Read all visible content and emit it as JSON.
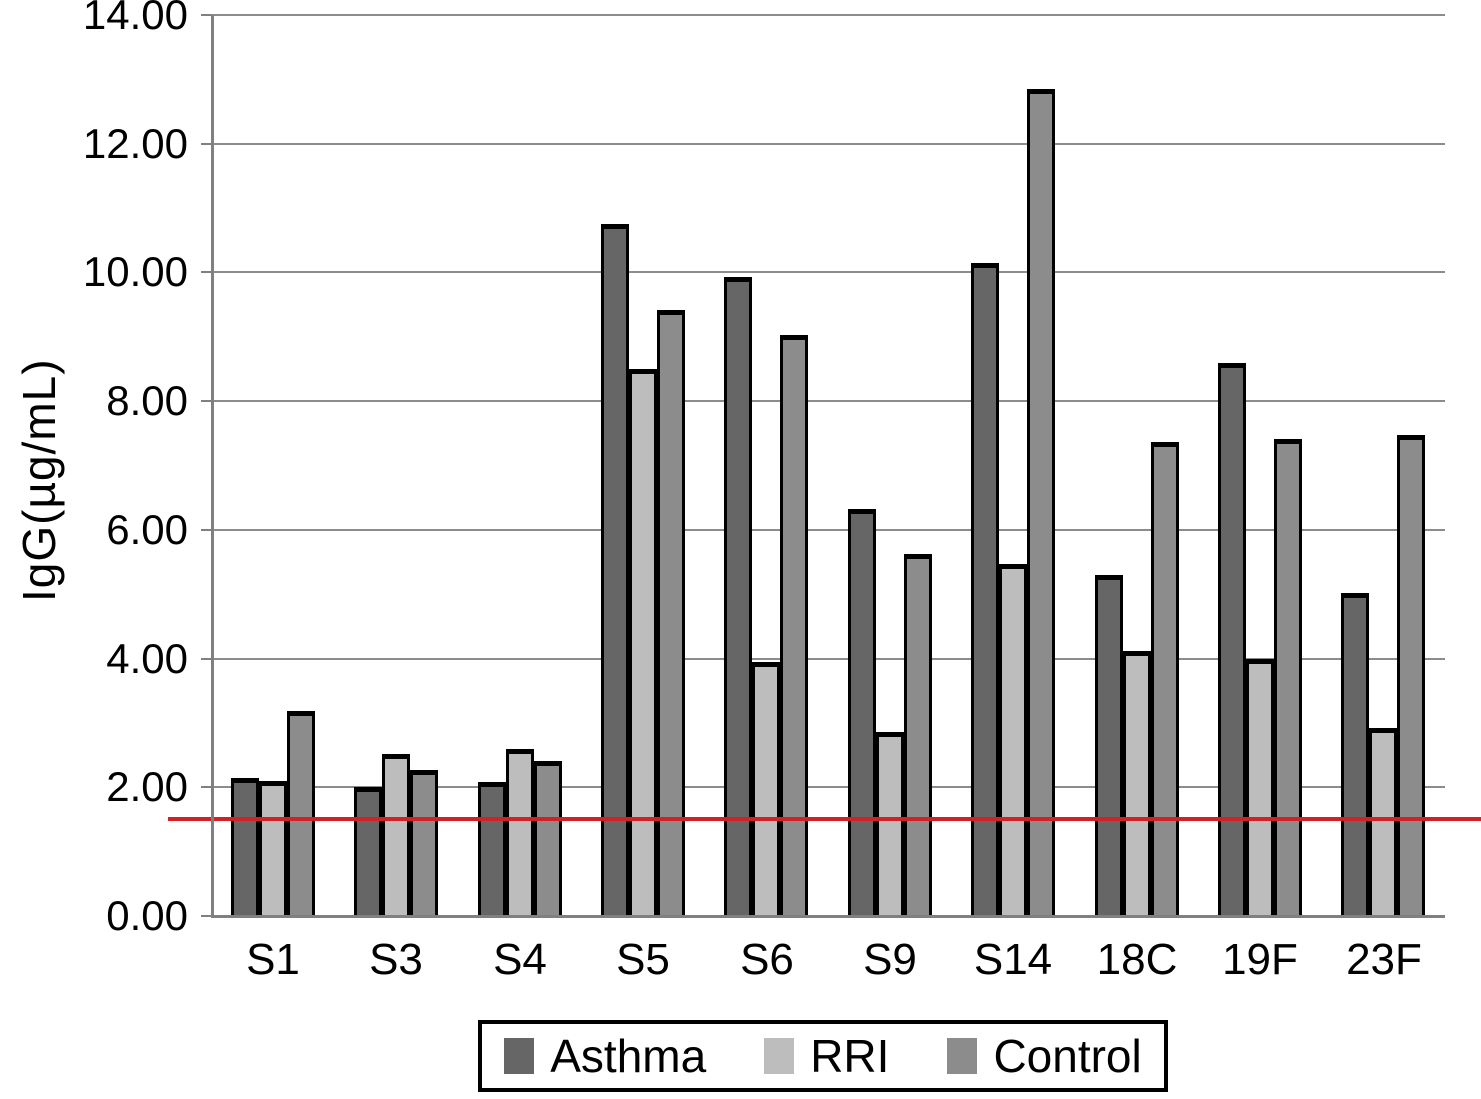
{
  "chart_data": {
    "type": "bar",
    "title": "",
    "xlabel": "",
    "ylabel": "IgG(µg/mL)",
    "categories": [
      "S1",
      "S3",
      "S4",
      "S5",
      "S6",
      "S9",
      "S14",
      "18C",
      "19F",
      "23F"
    ],
    "series": [
      {
        "name": "Asthma",
        "color": "#666666",
        "values": [
          2.14,
          2.0,
          2.08,
          10.75,
          9.93,
          6.32,
          10.15,
          5.3,
          8.59,
          5.02
        ]
      },
      {
        "name": "RRI",
        "color": "#bdbdbd",
        "values": [
          2.1,
          2.52,
          2.6,
          8.5,
          3.95,
          2.86,
          5.47,
          4.12,
          4.0,
          2.92
        ]
      },
      {
        "name": "Control",
        "color": "#8c8c8c",
        "values": [
          3.18,
          2.27,
          2.41,
          9.41,
          9.02,
          5.62,
          12.85,
          7.36,
          7.41,
          7.47
        ]
      }
    ],
    "ylim": [
      0,
      14
    ],
    "ytick_step": 2,
    "ytick_labels": [
      "0.00",
      "2.00",
      "4.00",
      "6.00",
      "8.00",
      "10.00",
      "12.00",
      "14.00"
    ],
    "grid": true,
    "legend_position": "bottom",
    "reference_line": {
      "value": 1.5,
      "color": "#d42024"
    }
  },
  "colors": {
    "gridline": "#8c8c8c",
    "axis": "#808080",
    "bar_border": "#000000",
    "background": "#ffffff",
    "text": "#000000"
  }
}
